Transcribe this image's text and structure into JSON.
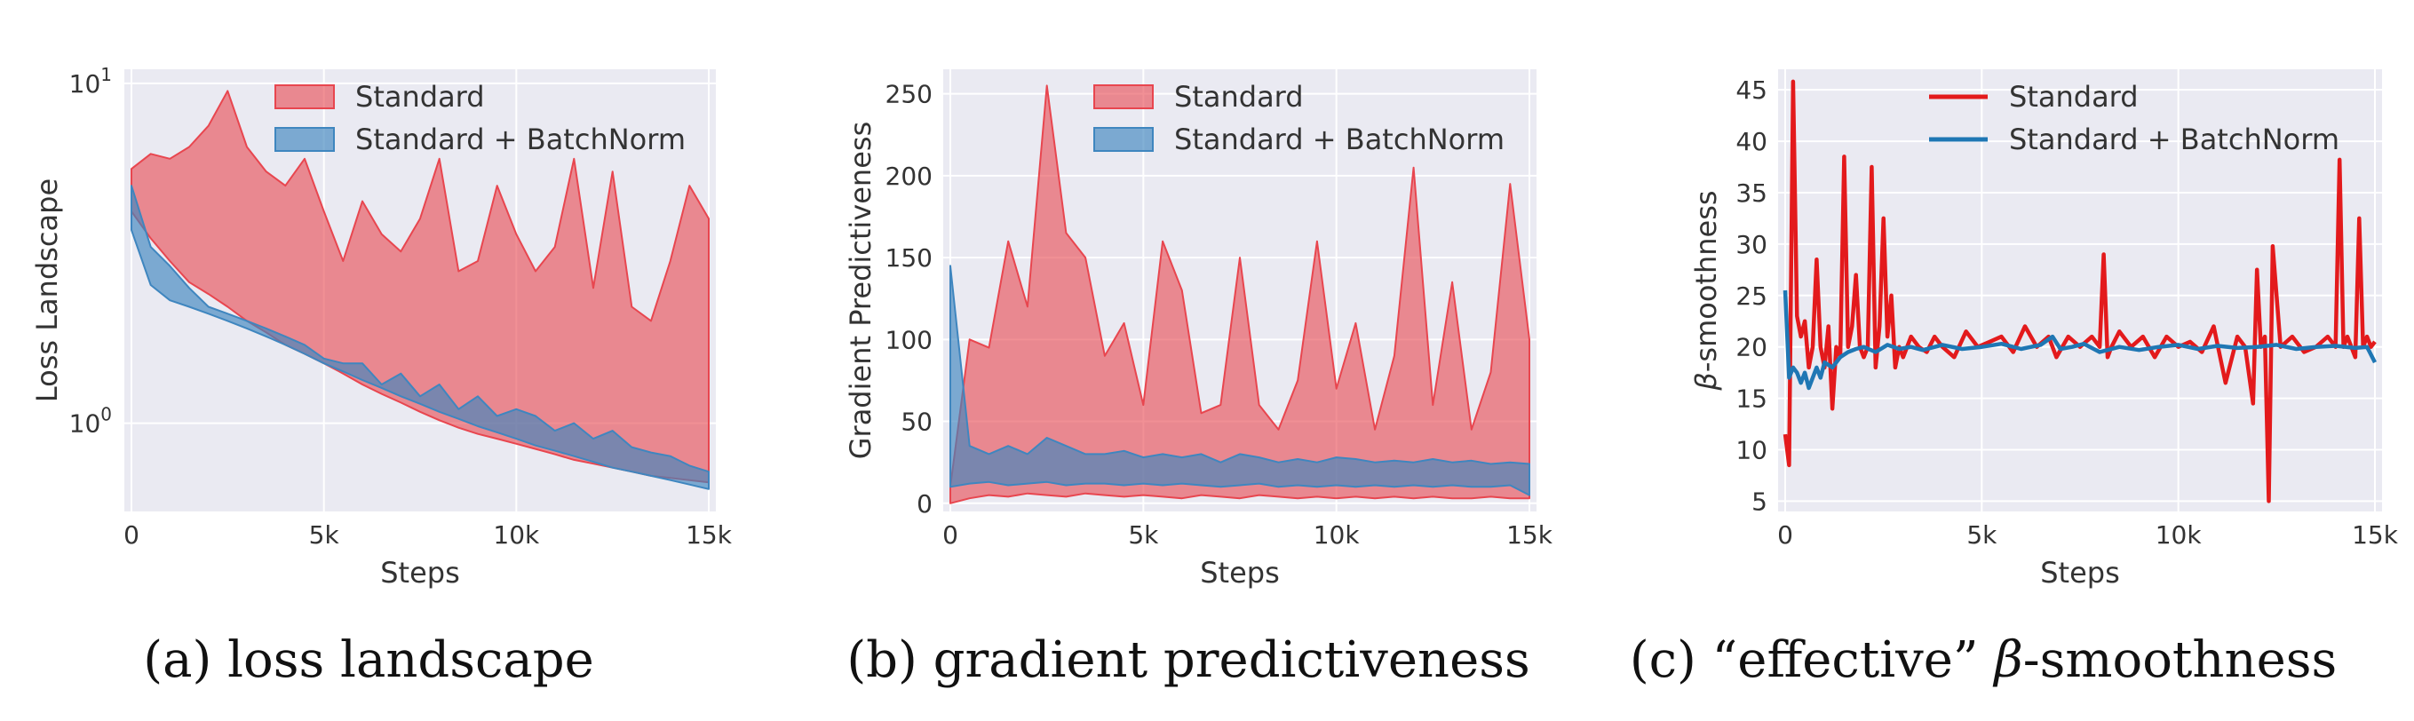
{
  "chart_data": [
    {
      "type": "area",
      "panel": "a",
      "caption": "(a) loss landscape",
      "xlabel": "Steps",
      "ylabel": "Loss Landscape",
      "xlim": [
        0,
        15000
      ],
      "ylim": [
        0.55,
        11
      ],
      "yscale": "log",
      "xticks": [
        0,
        5000,
        10000,
        15000
      ],
      "xtick_labels": [
        "0",
        "5k",
        "10k",
        "15k"
      ],
      "yticks": [
        1,
        10
      ],
      "ytick_base": "10",
      "ytick_exponents": [
        "0",
        "1"
      ],
      "legend_position": "top-right",
      "grid": true,
      "colors": {
        "background": "#eaeaf2",
        "grid": "#ffffff",
        "standard": "#e8464f",
        "batchnorm": "#3f86bf"
      },
      "series": [
        {
          "name": "Standard",
          "x": [
            0,
            500,
            1000,
            1500,
            2000,
            2500,
            3000,
            3500,
            4000,
            4500,
            5000,
            5500,
            6000,
            6500,
            7000,
            7500,
            8000,
            8500,
            9000,
            9500,
            10000,
            10500,
            11000,
            11500,
            12000,
            12500,
            13000,
            13500,
            14000,
            14500,
            15000
          ],
          "lower": [
            4.2,
            3.5,
            3.0,
            2.6,
            2.4,
            2.2,
            2.0,
            1.85,
            1.7,
            1.6,
            1.5,
            1.4,
            1.3,
            1.22,
            1.15,
            1.08,
            1.02,
            0.97,
            0.93,
            0.9,
            0.87,
            0.84,
            0.81,
            0.78,
            0.76,
            0.74,
            0.72,
            0.7,
            0.69,
            0.68,
            0.67
          ],
          "upper": [
            5.6,
            6.2,
            6.0,
            6.5,
            7.5,
            9.5,
            6.5,
            5.5,
            5.0,
            6.0,
            4.2,
            3.0,
            4.5,
            3.6,
            3.2,
            4.0,
            6.0,
            2.8,
            3.0,
            5.0,
            3.6,
            2.8,
            3.3,
            6.0,
            2.5,
            5.5,
            2.2,
            2.0,
            3.0,
            5.0,
            4.0
          ]
        },
        {
          "name": "Standard + BatchNorm",
          "x": [
            0,
            500,
            1000,
            1500,
            2000,
            2500,
            3000,
            3500,
            4000,
            4500,
            5000,
            5500,
            6000,
            6500,
            7000,
            7500,
            8000,
            8500,
            9000,
            9500,
            10000,
            10500,
            11000,
            11500,
            12000,
            12500,
            13000,
            13500,
            14000,
            14500,
            15000
          ],
          "lower": [
            3.7,
            2.55,
            2.3,
            2.2,
            2.1,
            2.0,
            1.9,
            1.8,
            1.7,
            1.6,
            1.5,
            1.42,
            1.34,
            1.27,
            1.2,
            1.14,
            1.08,
            1.03,
            0.98,
            0.94,
            0.9,
            0.86,
            0.83,
            0.8,
            0.77,
            0.74,
            0.72,
            0.7,
            0.68,
            0.66,
            0.64
          ],
          "upper": [
            5.0,
            3.3,
            2.9,
            2.5,
            2.2,
            2.1,
            2.0,
            1.9,
            1.8,
            1.7,
            1.55,
            1.5,
            1.5,
            1.3,
            1.4,
            1.2,
            1.3,
            1.1,
            1.2,
            1.05,
            1.1,
            1.05,
            0.95,
            1.0,
            0.9,
            0.95,
            0.85,
            0.82,
            0.8,
            0.75,
            0.72
          ]
        }
      ]
    },
    {
      "type": "area",
      "panel": "b",
      "caption": "(b) gradient predictiveness",
      "xlabel": "Steps",
      "ylabel": "Gradient Predictiveness",
      "xlim": [
        0,
        15000
      ],
      "ylim": [
        -5,
        265
      ],
      "yscale": "linear",
      "xticks": [
        0,
        5000,
        10000,
        15000
      ],
      "xtick_labels": [
        "0",
        "5k",
        "10k",
        "15k"
      ],
      "yticks": [
        0,
        50,
        100,
        150,
        200,
        250
      ],
      "ytick_labels": [
        "0",
        "50",
        "100",
        "150",
        "200",
        "250"
      ],
      "legend_position": "top-right",
      "grid": true,
      "colors": {
        "background": "#eaeaf2",
        "grid": "#ffffff",
        "standard": "#e8464f",
        "batchnorm": "#3f86bf"
      },
      "series": [
        {
          "name": "Standard",
          "x": [
            0,
            500,
            1000,
            1500,
            2000,
            2500,
            3000,
            3500,
            4000,
            4500,
            5000,
            5500,
            6000,
            6500,
            7000,
            7500,
            8000,
            8500,
            9000,
            9500,
            10000,
            10500,
            11000,
            11500,
            12000,
            12500,
            13000,
            13500,
            14000,
            14500,
            15000
          ],
          "lower": [
            0,
            3,
            5,
            4,
            6,
            5,
            4,
            6,
            5,
            4,
            5,
            4,
            3,
            5,
            4,
            3,
            5,
            4,
            3,
            4,
            3,
            4,
            3,
            4,
            3,
            4,
            3,
            3,
            4,
            3,
            3
          ],
          "upper": [
            10,
            100,
            95,
            160,
            120,
            255,
            165,
            150,
            90,
            110,
            60,
            160,
            130,
            55,
            60,
            150,
            60,
            45,
            75,
            160,
            70,
            110,
            45,
            90,
            205,
            60,
            135,
            45,
            80,
            195,
            100
          ]
        },
        {
          "name": "Standard + BatchNorm",
          "x": [
            0,
            500,
            1000,
            1500,
            2000,
            2500,
            3000,
            3500,
            4000,
            4500,
            5000,
            5500,
            6000,
            6500,
            7000,
            7500,
            8000,
            8500,
            9000,
            9500,
            10000,
            10500,
            11000,
            11500,
            12000,
            12500,
            13000,
            13500,
            14000,
            14500,
            15000
          ],
          "lower": [
            10,
            12,
            13,
            11,
            12,
            13,
            11,
            12,
            12,
            11,
            12,
            11,
            12,
            11,
            10,
            11,
            12,
            10,
            11,
            10,
            11,
            10,
            11,
            10,
            11,
            10,
            11,
            10,
            10,
            11,
            5
          ],
          "upper": [
            145,
            35,
            30,
            35,
            30,
            40,
            35,
            30,
            30,
            32,
            28,
            30,
            28,
            30,
            25,
            30,
            28,
            25,
            27,
            25,
            28,
            27,
            25,
            26,
            25,
            27,
            25,
            26,
            24,
            25,
            24
          ]
        }
      ]
    },
    {
      "type": "line",
      "panel": "c",
      "caption_prefix": "(c) “effective” ",
      "caption_symbol": "β",
      "caption_suffix": "-smoothness",
      "xlabel": "Steps",
      "ylabel_symbol": "β",
      "ylabel_suffix": "-smoothness",
      "xlim": [
        0,
        15000
      ],
      "ylim": [
        4,
        47
      ],
      "yscale": "linear",
      "xticks": [
        0,
        5000,
        10000,
        15000
      ],
      "xtick_labels": [
        "0",
        "5k",
        "10k",
        "15k"
      ],
      "yticks": [
        5,
        10,
        15,
        20,
        25,
        30,
        35,
        40,
        45
      ],
      "ytick_labels": [
        "5",
        "10",
        "15",
        "20",
        "25",
        "30",
        "35",
        "40",
        "45"
      ],
      "legend_position": "top-right",
      "grid": true,
      "colors": {
        "background": "#eaeaf2",
        "grid": "#ffffff",
        "standard": "#e31a1c",
        "batchnorm": "#1f77b4"
      },
      "series": [
        {
          "name": "Standard",
          "x": [
            0,
            100,
            200,
            300,
            400,
            500,
            600,
            700,
            800,
            900,
            1000,
            1100,
            1200,
            1300,
            1400,
            1500,
            1600,
            1700,
            1800,
            1900,
            2000,
            2100,
            2200,
            2300,
            2400,
            2500,
            2600,
            2700,
            2800,
            2900,
            3000,
            3200,
            3400,
            3600,
            3800,
            4000,
            4300,
            4600,
            4900,
            5200,
            5500,
            5800,
            6100,
            6400,
            6700,
            6900,
            7200,
            7500,
            7800,
            8000,
            8100,
            8200,
            8300,
            8500,
            8800,
            9100,
            9400,
            9700,
            10000,
            10300,
            10600,
            10900,
            11200,
            11500,
            11700,
            11900,
            12000,
            12100,
            12200,
            12300,
            12400,
            12600,
            12900,
            13200,
            13500,
            13800,
            14000,
            14100,
            14200,
            14300,
            14500,
            14600,
            14700,
            14800,
            14900,
            15000
          ],
          "y": [
            11.5,
            8.5,
            45.8,
            23,
            21,
            22.5,
            18,
            20,
            28.5,
            20,
            18,
            22,
            14,
            20,
            19,
            38.5,
            20,
            22,
            27,
            20,
            19,
            20,
            37.5,
            18,
            22,
            32.5,
            21,
            25,
            18,
            20,
            19,
            21,
            20,
            19.5,
            21,
            20,
            19,
            21.5,
            20,
            20.5,
            21,
            19.5,
            22,
            20,
            21,
            19,
            21,
            20,
            21,
            20,
            29,
            19,
            20,
            21.5,
            20,
            21,
            19,
            21,
            20,
            20.5,
            19.5,
            22,
            16.5,
            21,
            20,
            14.5,
            27.5,
            20,
            21,
            5,
            29.8,
            20,
            21,
            19.5,
            20,
            21,
            20,
            38.2,
            20,
            21,
            19,
            32.5,
            20,
            21,
            20,
            20.5
          ]
        },
        {
          "name": "Standard + BatchNorm",
          "x": [
            0,
            100,
            200,
            300,
            400,
            500,
            600,
            700,
            800,
            900,
            1000,
            1200,
            1400,
            1600,
            1800,
            2000,
            2300,
            2600,
            2900,
            3200,
            3500,
            4000,
            4500,
            5000,
            5500,
            6000,
            6500,
            6800,
            7000,
            7300,
            7600,
            8000,
            8500,
            9000,
            9500,
            10000,
            10500,
            11000,
            11500,
            12000,
            12500,
            13000,
            13500,
            14000,
            14500,
            14800,
            15000
          ],
          "y": [
            25.5,
            17,
            18,
            17.5,
            16.5,
            17.5,
            16,
            17,
            18,
            17,
            18.5,
            18,
            19,
            19.5,
            19.8,
            20,
            19.5,
            20.2,
            19.8,
            20,
            19.7,
            20.2,
            19.8,
            20,
            20.3,
            19.8,
            20.2,
            21,
            19.8,
            20,
            20.3,
            19.5,
            20,
            19.7,
            20,
            20.2,
            19.8,
            20.1,
            19.9,
            20,
            20.2,
            19.8,
            20,
            20.1,
            19.9,
            20,
            18.5
          ]
        }
      ]
    }
  ]
}
